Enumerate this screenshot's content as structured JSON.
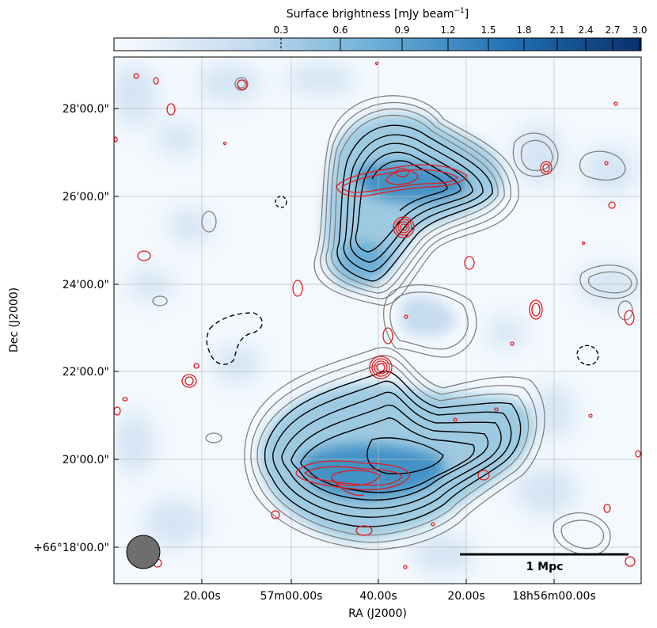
{
  "chart_data": {
    "type": "heatmap",
    "title": "",
    "colorbar": {
      "label": "Surface brightness [mJy beam$^{-1}$]",
      "label_main": "Surface brightness [mJy beam",
      "label_sup": "−1",
      "label_close": "]",
      "ticks": [
        "0.3",
        "0.6",
        "0.9",
        "1.2",
        "1.5",
        "1.8",
        "2.1",
        "2.4",
        "2.7",
        "3.0"
      ],
      "range": [
        0.3,
        3.0
      ],
      "colormap": [
        "#f7fbff",
        "#c6dbef",
        "#6baed6",
        "#2171b5",
        "#08306b"
      ]
    },
    "xlabel": "RA (J2000)",
    "ylabel": "Dec (J2000)",
    "xticks": [
      "20.00s",
      "57m00.00s",
      "40.00s",
      "20.00s",
      "18h56m00.00s"
    ],
    "yticks": [
      "28'00.0\"",
      "26'00.0\"",
      "24'00.0\"",
      "22'00.0\"",
      "20'00.0\"",
      "+66°18'00.0\""
    ],
    "grid": true,
    "scalebar": {
      "label": "1 Mpc"
    },
    "beam": {
      "shape": "circle",
      "position": "bottom-left"
    },
    "contour_colors": {
      "radio_low": "#808080",
      "radio_high": "#000000",
      "optical_xray": "#e31a1c",
      "negative": "#000000"
    },
    "contour_sets": [
      {
        "name": "",
        "color": "#808080",
        "style": "solid"
      },
      {
        "name": "",
        "color": "#000000",
        "style": "solid"
      },
      {
        "name": "",
        "color": "#e31a1c",
        "style": "solid"
      },
      {
        "name": "",
        "color": "#000000",
        "style": "dashed"
      }
    ]
  }
}
